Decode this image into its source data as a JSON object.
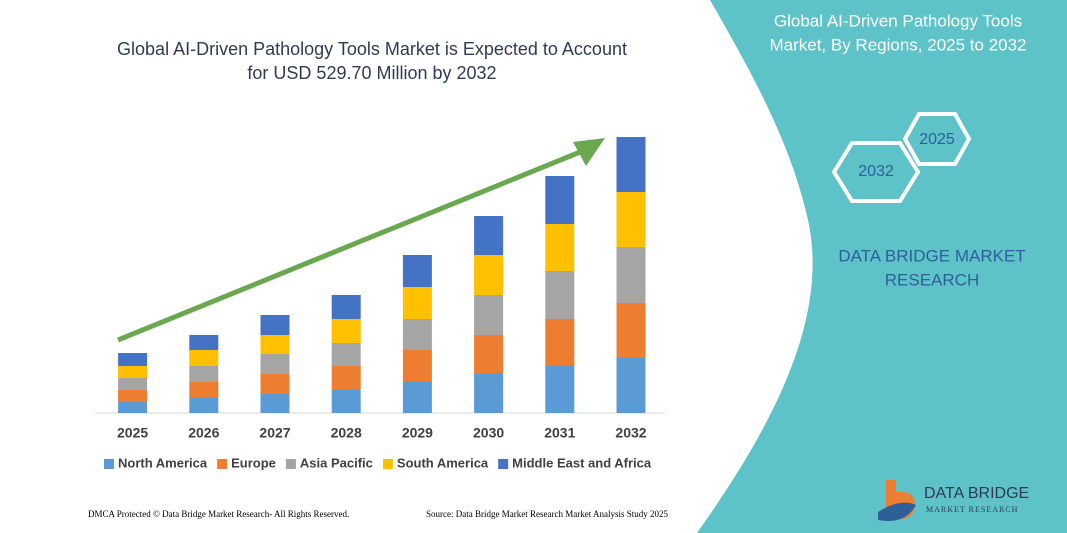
{
  "chart_data": {
    "type": "stacked-bar",
    "title_lines": [
      "Global AI-Driven Pathology Tools Market is Expected to Account",
      "for USD 529.70 Million by 2032"
    ],
    "categories": [
      "2025",
      "2026",
      "2027",
      "2028",
      "2029",
      "2030",
      "2031",
      "2032"
    ],
    "series": [
      {
        "name": "North America",
        "color": "#5b9bd5",
        "values": [
          11,
          15,
          19,
          23,
          31,
          39,
          47,
          55
        ]
      },
      {
        "name": "Europe",
        "color": "#ed7d31",
        "values": [
          12,
          16,
          20,
          24,
          32,
          39,
          47,
          55
        ]
      },
      {
        "name": "Asia Pacific",
        "color": "#a5a5a5",
        "values": [
          12,
          16,
          20,
          23,
          31,
          40,
          48,
          56
        ]
      },
      {
        "name": "South America",
        "color": "#ffc000",
        "values": [
          12,
          16,
          19,
          24,
          32,
          40,
          47,
          55
        ]
      },
      {
        "name": "Middle East and Africa",
        "color": "#4472c4",
        "values": [
          13,
          15,
          20,
          24,
          32,
          39,
          48,
          55
        ]
      }
    ],
    "ylim": [
      0,
      280
    ],
    "legend": "bottom"
  },
  "panel": {
    "title_lines": [
      "Global AI-Driven Pathology Tools",
      "Market, By Regions, 2025 to 2032"
    ],
    "hex_labels": [
      "2025",
      "2032"
    ],
    "brand_lines": [
      "DATA BRIDGE MARKET",
      "RESEARCH"
    ]
  },
  "footer": {
    "left": "DMCA Protected © Data Bridge Market Research- All Rights Reserved.",
    "right": "Source: Data Bridge Market Research Market Analysis Study 2025"
  },
  "logo": {
    "name": "DATA BRIDGE",
    "tagline": "MARKET RESEARCH"
  }
}
